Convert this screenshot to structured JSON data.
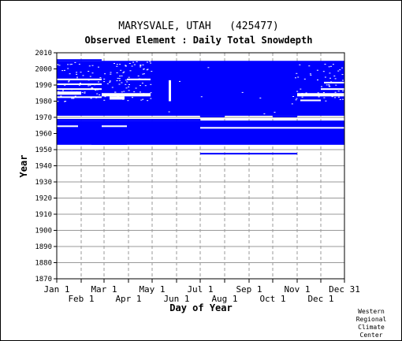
{
  "chart_data": {
    "type": "heatmap",
    "title": "MARYSVALE, UTAH   (425477)",
    "subtitle": "Observed Element : Daily Total Snowdepth",
    "xlabel": "Day of Year",
    "ylabel": "Year",
    "xlim": [
      1,
      366
    ],
    "ylim": [
      1870,
      2010
    ],
    "grid": true,
    "x_ticks": [
      {
        "label": "Jan 1",
        "day": 1,
        "row": "upper"
      },
      {
        "label": "Feb 1",
        "day": 32,
        "row": "lower"
      },
      {
        "label": "Mar 1",
        "day": 61,
        "row": "upper"
      },
      {
        "label": "Apr 1",
        "day": 92,
        "row": "lower"
      },
      {
        "label": "May 1",
        "day": 122,
        "row": "upper"
      },
      {
        "label": "Jun 1",
        "day": 153,
        "row": "lower"
      },
      {
        "label": "Jul 1",
        "day": 183,
        "row": "upper"
      },
      {
        "label": "Aug 1",
        "day": 214,
        "row": "lower"
      },
      {
        "label": "Sep 1",
        "day": 245,
        "row": "upper"
      },
      {
        "label": "Oct 1",
        "day": 275,
        "row": "lower"
      },
      {
        "label": "Nov 1",
        "day": 306,
        "row": "upper"
      },
      {
        "label": "Dec 1",
        "day": 336,
        "row": "lower"
      },
      {
        "label": "Dec 31",
        "day": 366,
        "row": "upper"
      }
    ],
    "y_ticks": [
      1870,
      1880,
      1890,
      1900,
      1910,
      1920,
      1930,
      1940,
      1950,
      1960,
      1970,
      1980,
      1990,
      2000,
      2010
    ],
    "observed_color": "#0000ff",
    "observed_blocks": [
      {
        "x0": 1,
        "x1": 366,
        "y0": 1971,
        "y1": 2005
      },
      {
        "x0": 1,
        "x1": 58,
        "y0": 2005,
        "y1": 2006
      },
      {
        "x0": 1,
        "x1": 366,
        "y0": 1953,
        "y1": 1968
      },
      {
        "x0": 1,
        "x1": 183,
        "y0": 1968,
        "y1": 1969
      },
      {
        "x0": 183,
        "x1": 214,
        "y0": 1970,
        "y1": 1971
      },
      {
        "x0": 275,
        "x1": 306,
        "y0": 1970,
        "y1": 1971
      },
      {
        "x0": 45,
        "x1": 90,
        "y0": 1953,
        "y1": 1954
      },
      {
        "x0": 183,
        "x1": 306,
        "y0": 1947,
        "y1": 1948
      }
    ],
    "missing_color": "#ffffff",
    "missing_segments": [
      {
        "x0": 1,
        "x1": 32,
        "y0": 1984,
        "y1": 1986
      },
      {
        "x0": 1,
        "x1": 58,
        "y0": 1982,
        "y1": 1983
      },
      {
        "x0": 1,
        "x1": 58,
        "y0": 1987,
        "y1": 1988
      },
      {
        "x0": 1,
        "x1": 58,
        "y0": 1990,
        "y1": 1991
      },
      {
        "x0": 1,
        "x1": 58,
        "y0": 1993,
        "y1": 1994
      },
      {
        "x0": 58,
        "x1": 120,
        "y0": 1983,
        "y1": 1985
      },
      {
        "x0": 68,
        "x1": 87,
        "y0": 1981,
        "y1": 1983
      },
      {
        "x0": 90,
        "x1": 120,
        "y0": 1993,
        "y1": 1994
      },
      {
        "x0": 143,
        "x1": 146,
        "y0": 1980,
        "y1": 1993
      },
      {
        "x0": 306,
        "x1": 366,
        "y0": 1983,
        "y1": 1985
      },
      {
        "x0": 310,
        "x1": 336,
        "y0": 1980,
        "y1": 1981
      },
      {
        "x0": 336,
        "x1": 366,
        "y0": 1987,
        "y1": 1988
      },
      {
        "x0": 340,
        "x1": 366,
        "y0": 1991,
        "y1": 1992
      },
      {
        "x0": 1,
        "x1": 28,
        "y0": 1964,
        "y1": 1965
      },
      {
        "x0": 58,
        "x1": 90,
        "y0": 1964,
        "y1": 1965
      },
      {
        "x0": 183,
        "x1": 366,
        "y0": 1963,
        "y1": 1964
      }
    ]
  },
  "credit": [
    "Western",
    "Regional",
    "Climate",
    "Center"
  ]
}
